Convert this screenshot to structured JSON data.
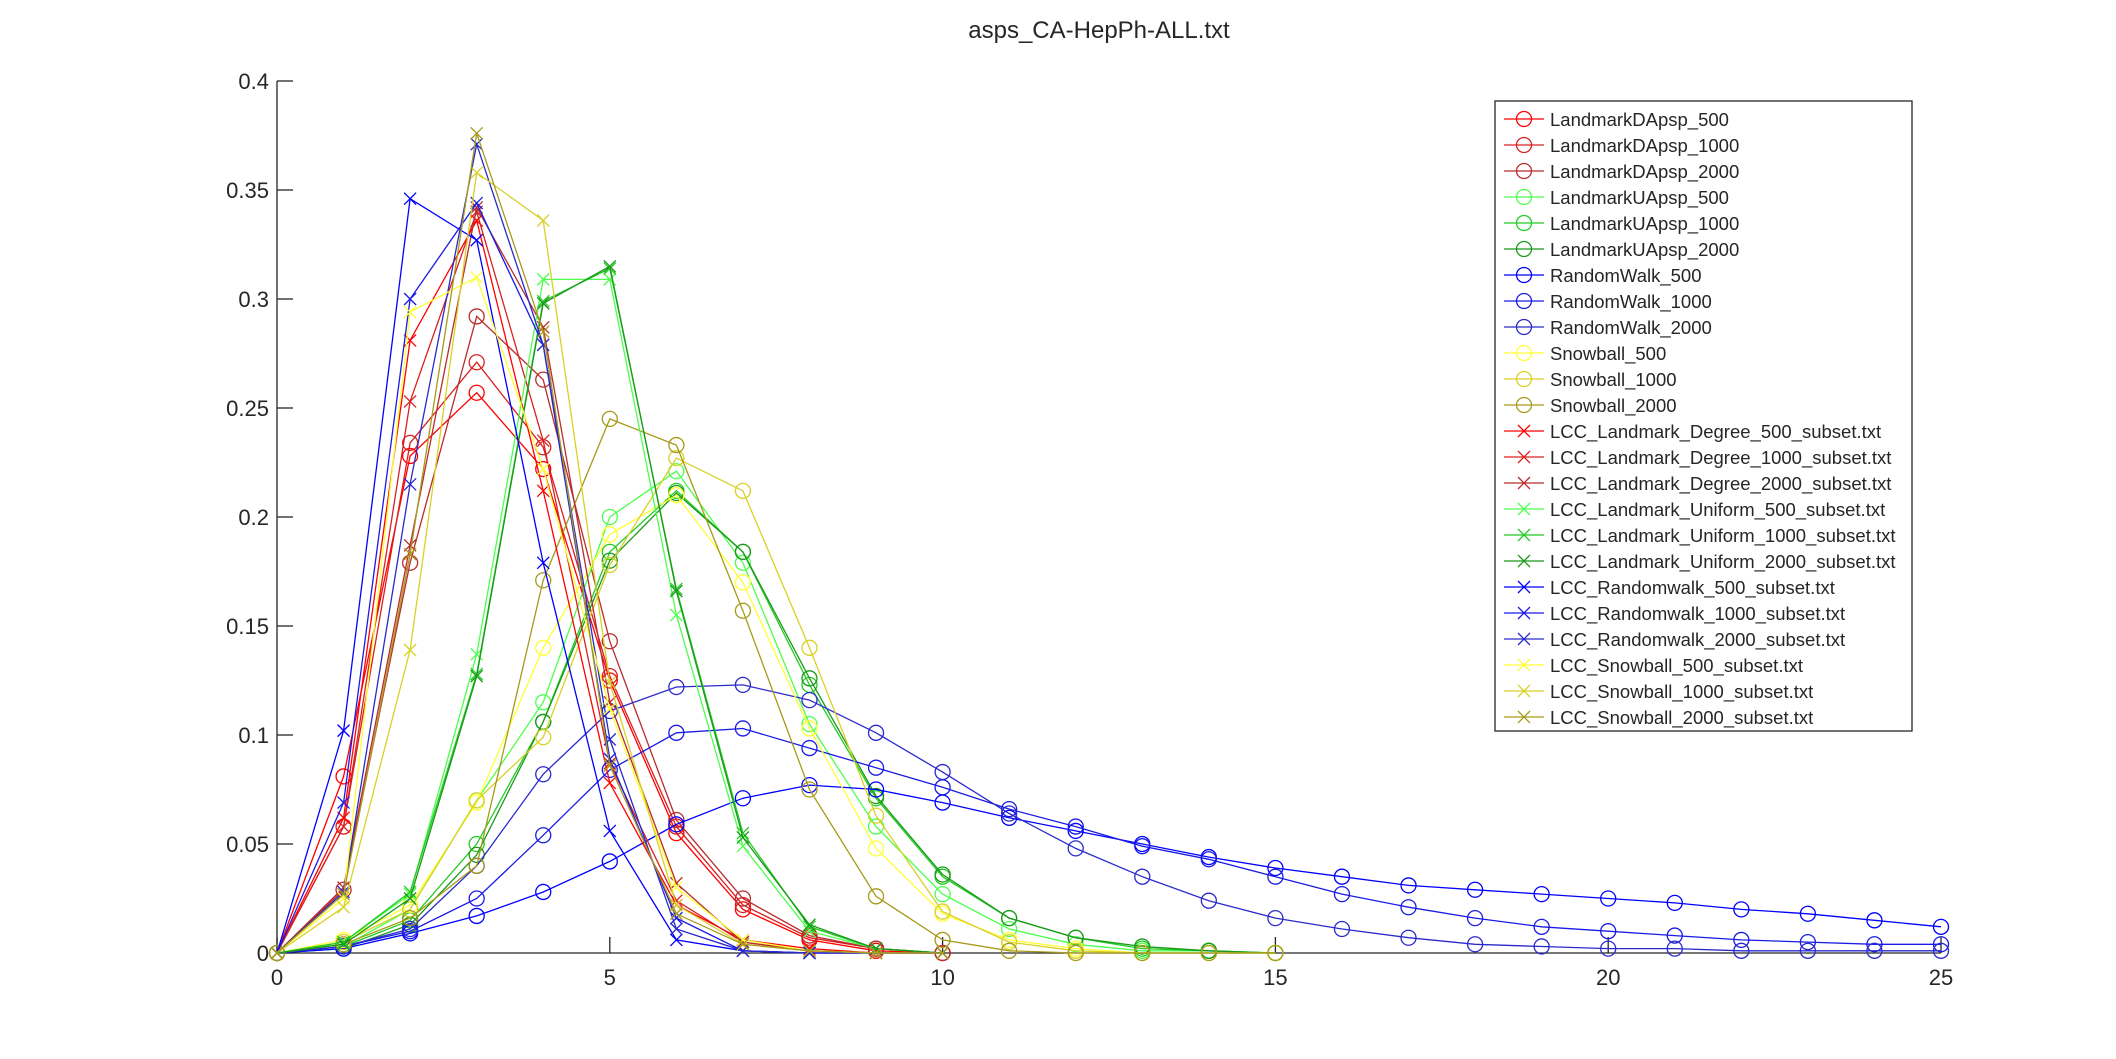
{
  "chart_data": {
    "type": "line",
    "title": "asps_CA-HepPh-ALL.txt",
    "xlabel": "",
    "ylabel": "",
    "xlim": [
      0,
      25
    ],
    "ylim": [
      0,
      0.4
    ],
    "xticks": [
      0,
      5,
      10,
      15,
      20,
      25
    ],
    "xtick_labels": [
      "0",
      "5",
      "10",
      "15",
      "20",
      "25"
    ],
    "yticks": [
      0,
      0.05,
      0.1,
      0.15,
      0.2,
      0.25,
      0.3,
      0.35,
      0.4
    ],
    "ytick_labels": [
      "0",
      "0.05",
      "0.1",
      "0.15",
      "0.2",
      "0.25",
      "0.3",
      "0.35",
      "0.4"
    ],
    "grid": false,
    "legend_position": "top-right",
    "series": [
      {
        "name": "LandmarkDApsp_500",
        "color": "#ff0000",
        "marker": "circle",
        "x": [
          0,
          1,
          2,
          3,
          4,
          5,
          6,
          7,
          8,
          9,
          10
        ],
        "values": [
          0,
          0.081,
          0.228,
          0.257,
          0.222,
          0.125,
          0.055,
          0.02,
          0.006,
          0.001,
          0
        ]
      },
      {
        "name": "LandmarkDApsp_1000",
        "color": "#d92020",
        "marker": "circle",
        "x": [
          0,
          1,
          2,
          3,
          4,
          5,
          6,
          7,
          8,
          9,
          10
        ],
        "values": [
          0,
          0.058,
          0.234,
          0.271,
          0.232,
          0.127,
          0.058,
          0.022,
          0.007,
          0.002,
          0
        ]
      },
      {
        "name": "LandmarkDApsp_2000",
        "color": "#b82c2c",
        "marker": "circle",
        "x": [
          0,
          1,
          2,
          3,
          4,
          5,
          6,
          7,
          8,
          9,
          10
        ],
        "values": [
          0,
          0.029,
          0.179,
          0.292,
          0.263,
          0.143,
          0.061,
          0.025,
          0.008,
          0.002,
          0
        ]
      },
      {
        "name": "LandmarkUApsp_500",
        "color": "#4dff4d",
        "marker": "circle",
        "x": [
          0,
          1,
          2,
          3,
          4,
          5,
          6,
          7,
          8,
          9,
          10,
          11,
          12,
          13,
          14,
          15
        ],
        "values": [
          0,
          0.003,
          0.02,
          0.07,
          0.115,
          0.2,
          0.221,
          0.179,
          0.105,
          0.058,
          0.027,
          0.011,
          0.004,
          0.001,
          0.001,
          0
        ]
      },
      {
        "name": "LandmarkUApsp_1000",
        "color": "#22cc22",
        "marker": "circle",
        "x": [
          0,
          1,
          2,
          3,
          4,
          5,
          6,
          7,
          8,
          9,
          10,
          11,
          12,
          13,
          14,
          15
        ],
        "values": [
          0,
          0.003,
          0.015,
          0.05,
          0.106,
          0.184,
          0.212,
          0.184,
          0.123,
          0.071,
          0.035,
          0.016,
          0.007,
          0.002,
          0.001,
          0
        ]
      },
      {
        "name": "LandmarkUApsp_2000",
        "color": "#1a991a",
        "marker": "circle",
        "x": [
          0,
          1,
          2,
          3,
          4,
          5,
          6,
          7,
          8,
          9,
          10,
          11,
          12,
          13,
          14,
          15
        ],
        "values": [
          0,
          0.002,
          0.013,
          0.045,
          0.106,
          0.18,
          0.211,
          0.184,
          0.126,
          0.072,
          0.036,
          0.016,
          0.007,
          0.003,
          0.001,
          0
        ]
      },
      {
        "name": "RandomWalk_500",
        "color": "#0000ff",
        "marker": "circle",
        "x": [
          0,
          1,
          2,
          3,
          4,
          5,
          6,
          7,
          8,
          9,
          10,
          11,
          12,
          13,
          14,
          15,
          16,
          17,
          18,
          19,
          20,
          21,
          22,
          23,
          24,
          25
        ],
        "values": [
          0,
          0.002,
          0.009,
          0.017,
          0.028,
          0.042,
          0.059,
          0.071,
          0.077,
          0.075,
          0.069,
          0.062,
          0.056,
          0.05,
          0.044,
          0.039,
          0.035,
          0.031,
          0.029,
          0.027,
          0.025,
          0.023,
          0.02,
          0.018,
          0.015,
          0.012
        ]
      },
      {
        "name": "RandomWalk_1000",
        "color": "#1a1ae6",
        "marker": "circle",
        "x": [
          0,
          1,
          2,
          3,
          4,
          5,
          6,
          7,
          8,
          9,
          10,
          11,
          12,
          13,
          14,
          15,
          16,
          17,
          18,
          19,
          20,
          21,
          22,
          23,
          24,
          25
        ],
        "values": [
          0,
          0.003,
          0.01,
          0.025,
          0.054,
          0.084,
          0.101,
          0.103,
          0.094,
          0.085,
          0.076,
          0.066,
          0.058,
          0.049,
          0.043,
          0.035,
          0.027,
          0.021,
          0.016,
          0.012,
          0.01,
          0.008,
          0.006,
          0.005,
          0.004,
          0.004
        ]
      },
      {
        "name": "RandomWalk_2000",
        "color": "#2a2acc",
        "marker": "circle",
        "x": [
          0,
          1,
          2,
          3,
          4,
          5,
          6,
          7,
          8,
          9,
          10,
          11,
          12,
          13,
          14,
          15,
          16,
          17,
          18,
          19,
          20,
          21,
          22,
          23,
          24,
          25
        ],
        "values": [
          0,
          0.003,
          0.011,
          0.04,
          0.082,
          0.111,
          0.122,
          0.123,
          0.116,
          0.101,
          0.083,
          0.064,
          0.048,
          0.035,
          0.024,
          0.016,
          0.011,
          0.007,
          0.004,
          0.003,
          0.002,
          0.002,
          0.001,
          0.001,
          0.001,
          0.001
        ]
      },
      {
        "name": "Snowball_500",
        "color": "#ffff33",
        "marker": "circle",
        "x": [
          0,
          1,
          2,
          3,
          4,
          5,
          6,
          7,
          8,
          9,
          10,
          11,
          12,
          13,
          14,
          15
        ],
        "values": [
          0,
          0.006,
          0.022,
          0.069,
          0.14,
          0.192,
          0.21,
          0.17,
          0.103,
          0.048,
          0.018,
          0.006,
          0.002,
          0,
          0,
          0
        ]
      },
      {
        "name": "Snowball_1000",
        "color": "#d9d126",
        "marker": "circle",
        "x": [
          0,
          1,
          2,
          3,
          4,
          5,
          6,
          7,
          8,
          9,
          10,
          11,
          12,
          13,
          14,
          15
        ],
        "values": [
          0,
          0.005,
          0.02,
          0.07,
          0.099,
          0.178,
          0.227,
          0.212,
          0.14,
          0.063,
          0.019,
          0.005,
          0.001,
          0,
          0,
          0
        ]
      },
      {
        "name": "Snowball_2000",
        "color": "#a69a1a",
        "marker": "circle",
        "x": [
          0,
          1,
          2,
          3,
          4,
          5,
          6,
          7,
          8,
          9,
          10,
          11,
          12,
          13,
          14,
          15
        ],
        "values": [
          0,
          0.004,
          0.016,
          0.04,
          0.171,
          0.245,
          0.233,
          0.157,
          0.075,
          0.026,
          0.006,
          0.001,
          0,
          0,
          0,
          0
        ]
      },
      {
        "name": "LCC_Landmark_Degree_500_subset.txt",
        "color": "#ff0000",
        "marker": "x",
        "x": [
          0,
          1,
          2,
          3,
          4,
          5,
          6,
          7,
          8,
          9,
          10
        ],
        "values": [
          0,
          0.062,
          0.281,
          0.336,
          0.212,
          0.078,
          0.022,
          0.006,
          0.002,
          0,
          0
        ]
      },
      {
        "name": "LCC_Landmark_Degree_1000_subset.txt",
        "color": "#d92020",
        "marker": "x",
        "x": [
          0,
          1,
          2,
          3,
          4,
          5,
          6,
          7,
          8,
          9,
          10
        ],
        "values": [
          0,
          0.058,
          0.253,
          0.34,
          0.235,
          0.087,
          0.024,
          0.005,
          0.001,
          0,
          0
        ]
      },
      {
        "name": "LCC_Landmark_Degree_2000_subset.txt",
        "color": "#b82c2c",
        "marker": "x",
        "x": [
          0,
          1,
          2,
          3,
          4,
          5,
          6,
          7,
          8,
          9,
          10
        ],
        "values": [
          0,
          0.03,
          0.187,
          0.342,
          0.287,
          0.115,
          0.032,
          0.005,
          0.001,
          0,
          0
        ]
      },
      {
        "name": "LCC_Landmark_Uniform_500_subset.txt",
        "color": "#4dff4d",
        "marker": "x",
        "x": [
          0,
          1,
          2,
          3,
          4,
          5,
          6,
          7,
          8,
          9,
          10
        ],
        "values": [
          0,
          0.005,
          0.027,
          0.137,
          0.309,
          0.309,
          0.155,
          0.049,
          0.01,
          0.002,
          0
        ]
      },
      {
        "name": "LCC_Landmark_Uniform_1000_subset.txt",
        "color": "#22cc22",
        "marker": "x",
        "x": [
          0,
          1,
          2,
          3,
          4,
          5,
          6,
          7,
          8,
          9,
          10
        ],
        "values": [
          0,
          0.005,
          0.028,
          0.128,
          0.299,
          0.314,
          0.167,
          0.055,
          0.012,
          0.002,
          0
        ]
      },
      {
        "name": "LCC_Landmark_Uniform_2000_subset.txt",
        "color": "#1a991a",
        "marker": "x",
        "x": [
          0,
          1,
          2,
          3,
          4,
          5,
          6,
          7,
          8,
          9,
          10
        ],
        "values": [
          0,
          0.004,
          0.025,
          0.127,
          0.298,
          0.315,
          0.166,
          0.053,
          0.013,
          0.002,
          0
        ]
      },
      {
        "name": "LCC_Randomwalk_500_subset.txt",
        "color": "#0000ff",
        "marker": "x",
        "x": [
          0,
          1,
          2,
          3,
          4,
          5,
          6,
          7,
          8,
          9,
          10
        ],
        "values": [
          0,
          0.102,
          0.346,
          0.327,
          0.179,
          0.056,
          0.006,
          0.001,
          0,
          0,
          0
        ]
      },
      {
        "name": "LCC_Randomwalk_1000_subset.txt",
        "color": "#1a1ae6",
        "marker": "x",
        "x": [
          0,
          1,
          2,
          3,
          4,
          5,
          6,
          7,
          8,
          9,
          10
        ],
        "values": [
          0,
          0.069,
          0.3,
          0.344,
          0.279,
          0.089,
          0.016,
          0.001,
          0,
          0,
          0
        ]
      },
      {
        "name": "LCC_Randomwalk_2000_subset.txt",
        "color": "#2a2acc",
        "marker": "x",
        "x": [
          0,
          1,
          2,
          3,
          4,
          5,
          6,
          7,
          8,
          9,
          10
        ],
        "values": [
          0,
          0.028,
          0.215,
          0.371,
          0.279,
          0.098,
          0.011,
          0.001,
          0,
          0,
          0
        ]
      },
      {
        "name": "LCC_Snowball_500_subset.txt",
        "color": "#ffff33",
        "marker": "x",
        "x": [
          0,
          1,
          2,
          3,
          4,
          5,
          6,
          7,
          8,
          9,
          10
        ],
        "values": [
          0,
          0.025,
          0.294,
          0.31,
          0.222,
          0.112,
          0.03,
          0.006,
          0.001,
          0,
          0
        ]
      },
      {
        "name": "LCC_Snowball_1000_subset.txt",
        "color": "#d9d126",
        "marker": "x",
        "x": [
          0,
          1,
          2,
          3,
          4,
          5,
          6,
          7,
          8,
          9,
          10
        ],
        "values": [
          0,
          0.021,
          0.139,
          0.358,
          0.336,
          0.124,
          0.022,
          0.004,
          0.001,
          0,
          0
        ]
      },
      {
        "name": "LCC_Snowball_2000_subset.txt",
        "color": "#a69a1a",
        "marker": "x",
        "x": [
          0,
          1,
          2,
          3,
          4,
          5,
          6,
          7,
          8,
          9,
          10
        ],
        "values": [
          0,
          0.027,
          0.183,
          0.376,
          0.285,
          0.086,
          0.018,
          0.004,
          0.001,
          0,
          0
        ]
      }
    ]
  }
}
